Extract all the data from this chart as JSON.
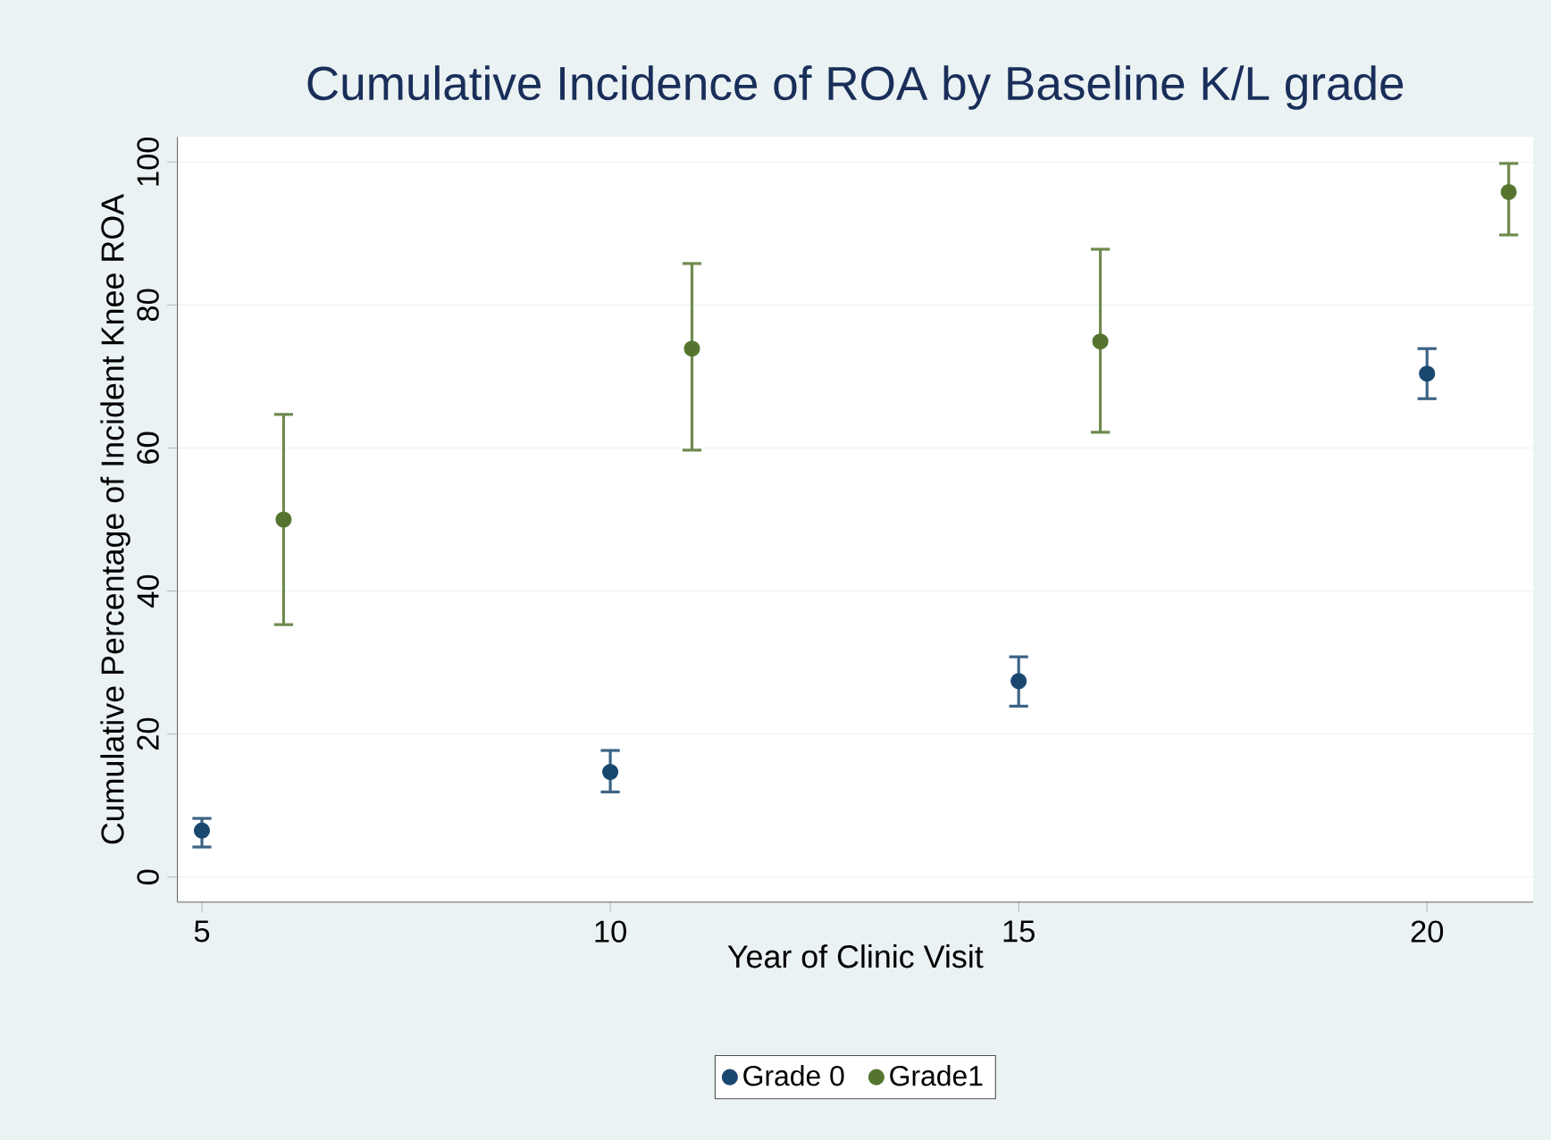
{
  "chart_data": {
    "type": "scatter",
    "title": "Cumulative Incidence of ROA by Baseline K/L grade",
    "xlabel": "Year of Clinic Visit",
    "ylabel": "Cumulative Percentage of Incident Knee ROA",
    "xlim": [
      4.7,
      21.3
    ],
    "ylim": [
      -3.5,
      103.5
    ],
    "xticks": [
      5,
      10,
      15,
      20
    ],
    "yticks": [
      0,
      20,
      40,
      60,
      80,
      100
    ],
    "grid": "y",
    "legend": "bottom",
    "marker": "circle",
    "series": [
      {
        "name": "Grade 0",
        "color": "#1a476f",
        "x": [
          5,
          10,
          15,
          20
        ],
        "values": [
          6.5,
          14.7,
          27.4,
          70.4
        ],
        "errors": [
          [
            4.2,
            8.2
          ],
          [
            11.9,
            17.7
          ],
          [
            23.9,
            30.8
          ],
          [
            66.9,
            73.9
          ]
        ]
      },
      {
        "name": "Grade1",
        "color": "#55752f",
        "x": [
          6,
          11,
          16,
          21
        ],
        "values": [
          50,
          73.9,
          74.9,
          95.8
        ],
        "errors": [
          [
            35.3,
            64.7
          ],
          [
            59.7,
            85.8
          ],
          [
            62.2,
            87.8
          ],
          [
            89.8,
            99.8
          ]
        ]
      }
    ]
  }
}
